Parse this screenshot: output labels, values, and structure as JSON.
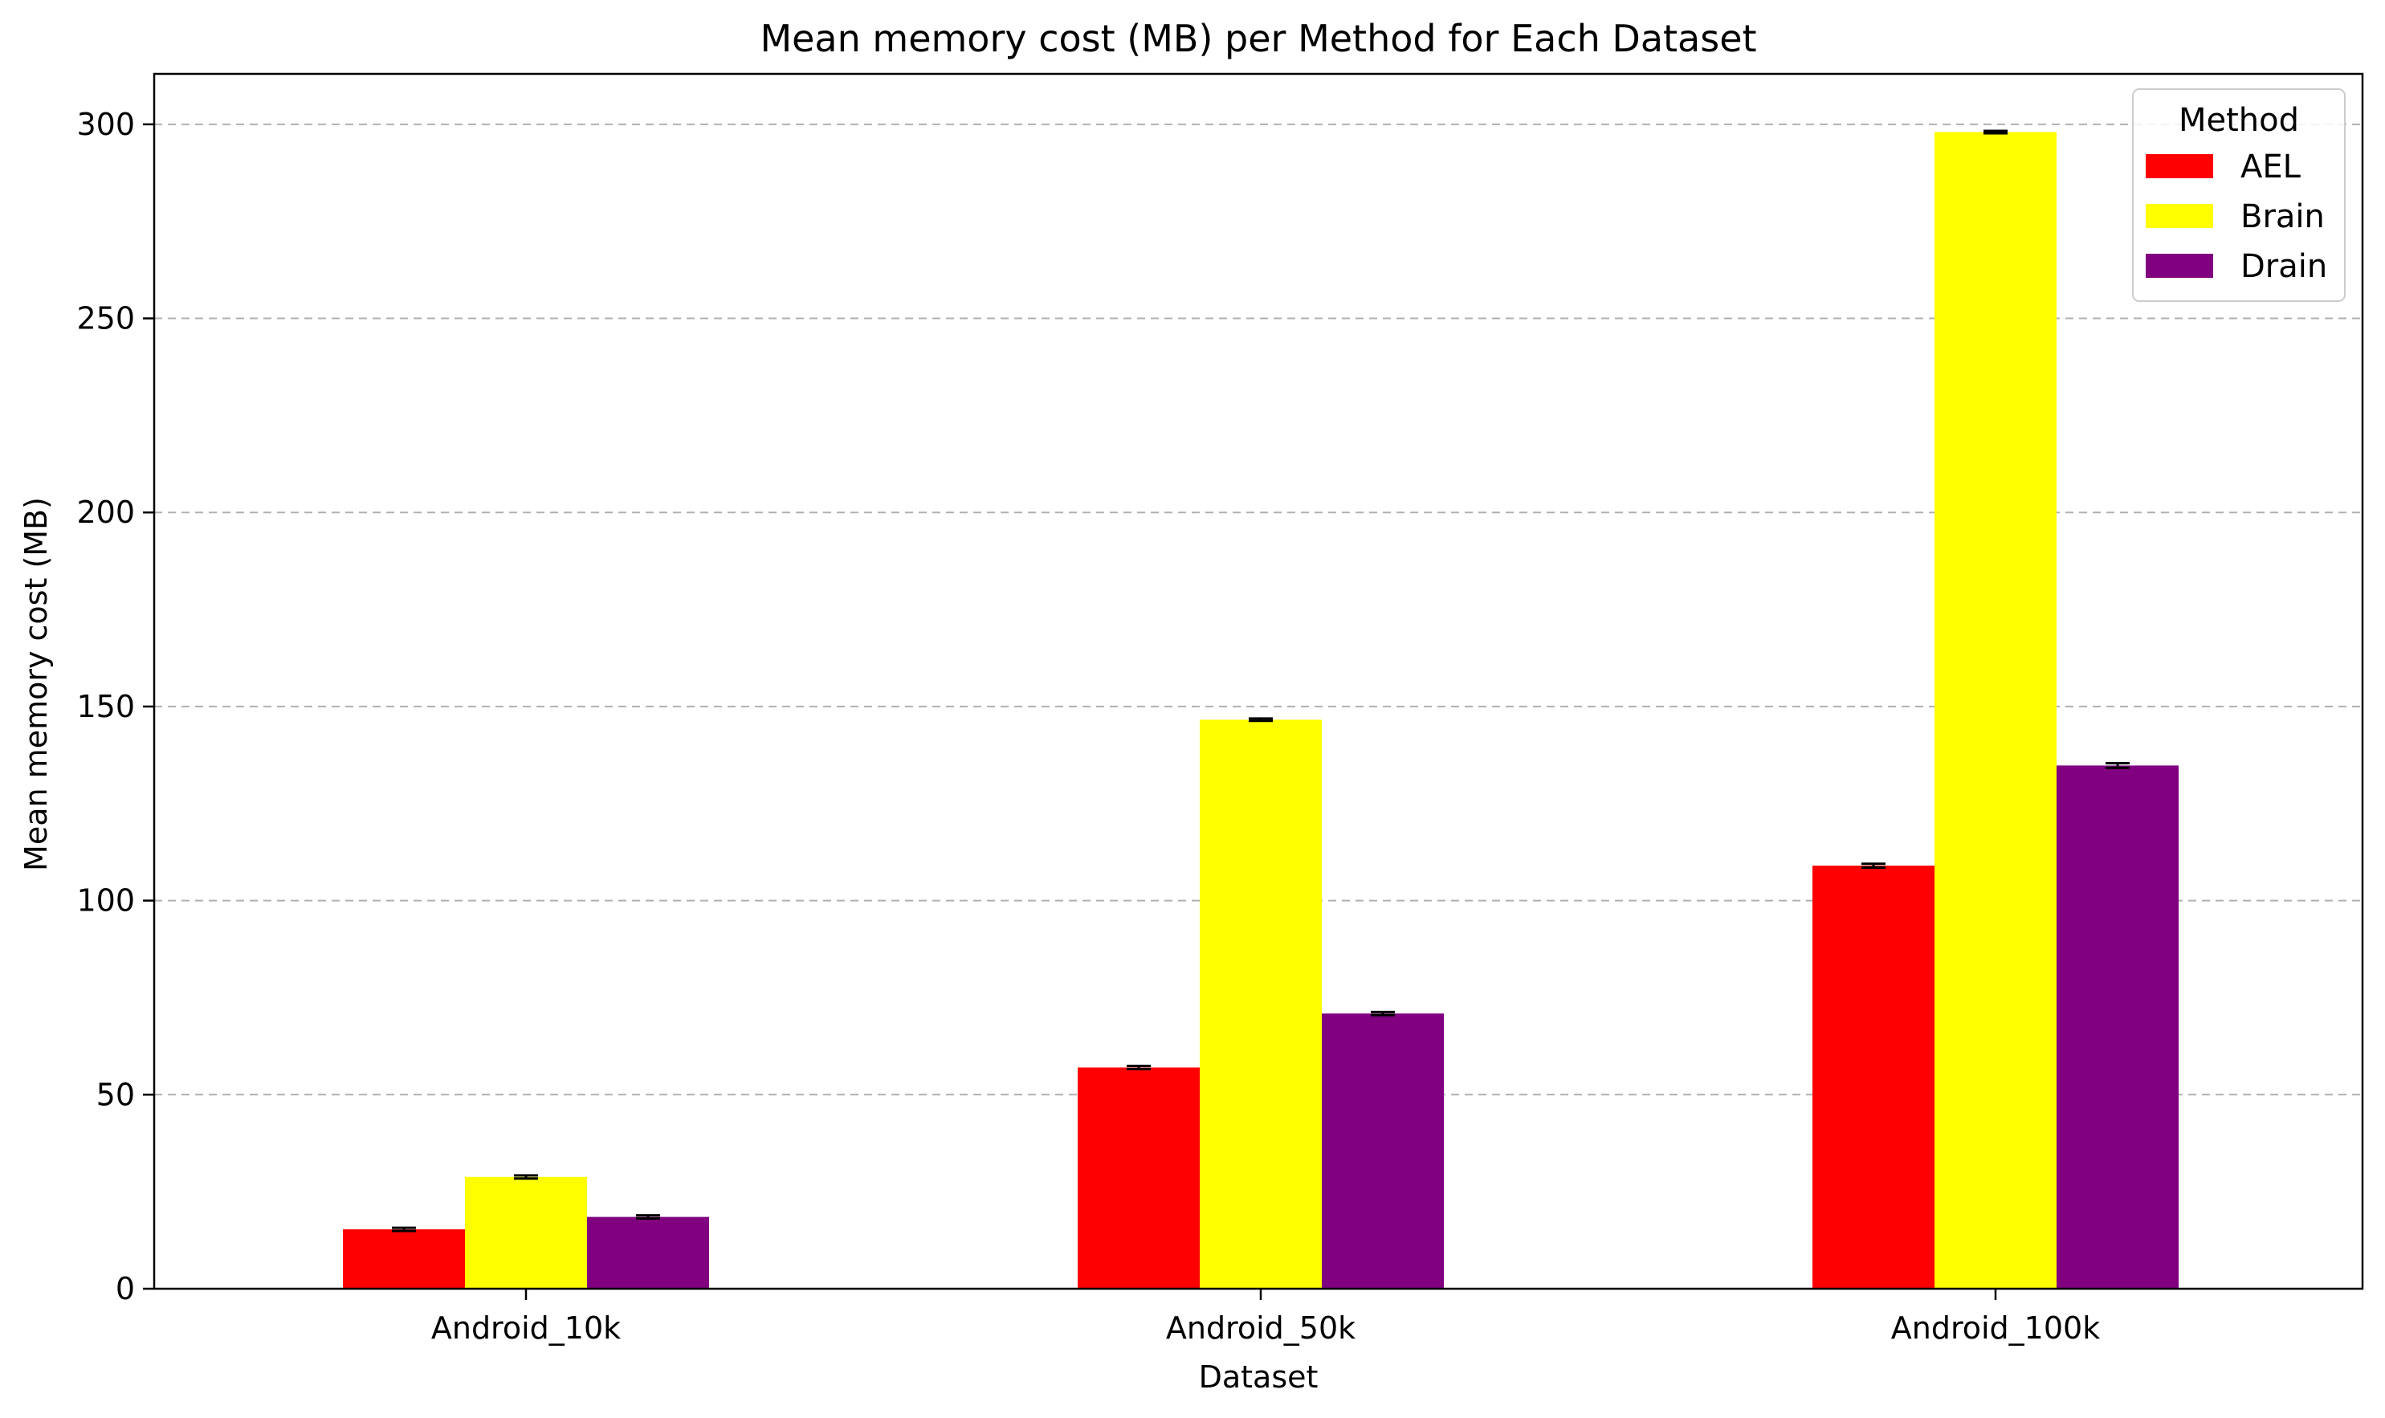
{
  "chart_data": {
    "type": "bar",
    "title": "Mean memory cost (MB) per Method for Each Dataset",
    "xlabel": "Dataset",
    "ylabel": "Mean memory cost (MB)",
    "categories": [
      "Android_10k",
      "Android_50k",
      "Android_100k"
    ],
    "series": [
      {
        "name": "AEL",
        "color": "#ff0000",
        "values": [
          15.3,
          57.0,
          109.0
        ],
        "errors": [
          0.4,
          0.4,
          0.5
        ]
      },
      {
        "name": "Brain",
        "color": "#ffff00",
        "values": [
          28.8,
          146.6,
          298.0
        ],
        "errors": [
          0.4,
          0.3,
          0.3
        ]
      },
      {
        "name": "Drain",
        "color": "#800080",
        "values": [
          18.5,
          70.9,
          134.8
        ],
        "errors": [
          0.4,
          0.4,
          0.6
        ]
      }
    ],
    "ylim": [
      0,
      313
    ],
    "yticks": [
      0,
      50,
      100,
      150,
      200,
      250,
      300
    ],
    "grid": "y-dashed",
    "legend": {
      "title": "Method",
      "position": "top-right"
    }
  }
}
